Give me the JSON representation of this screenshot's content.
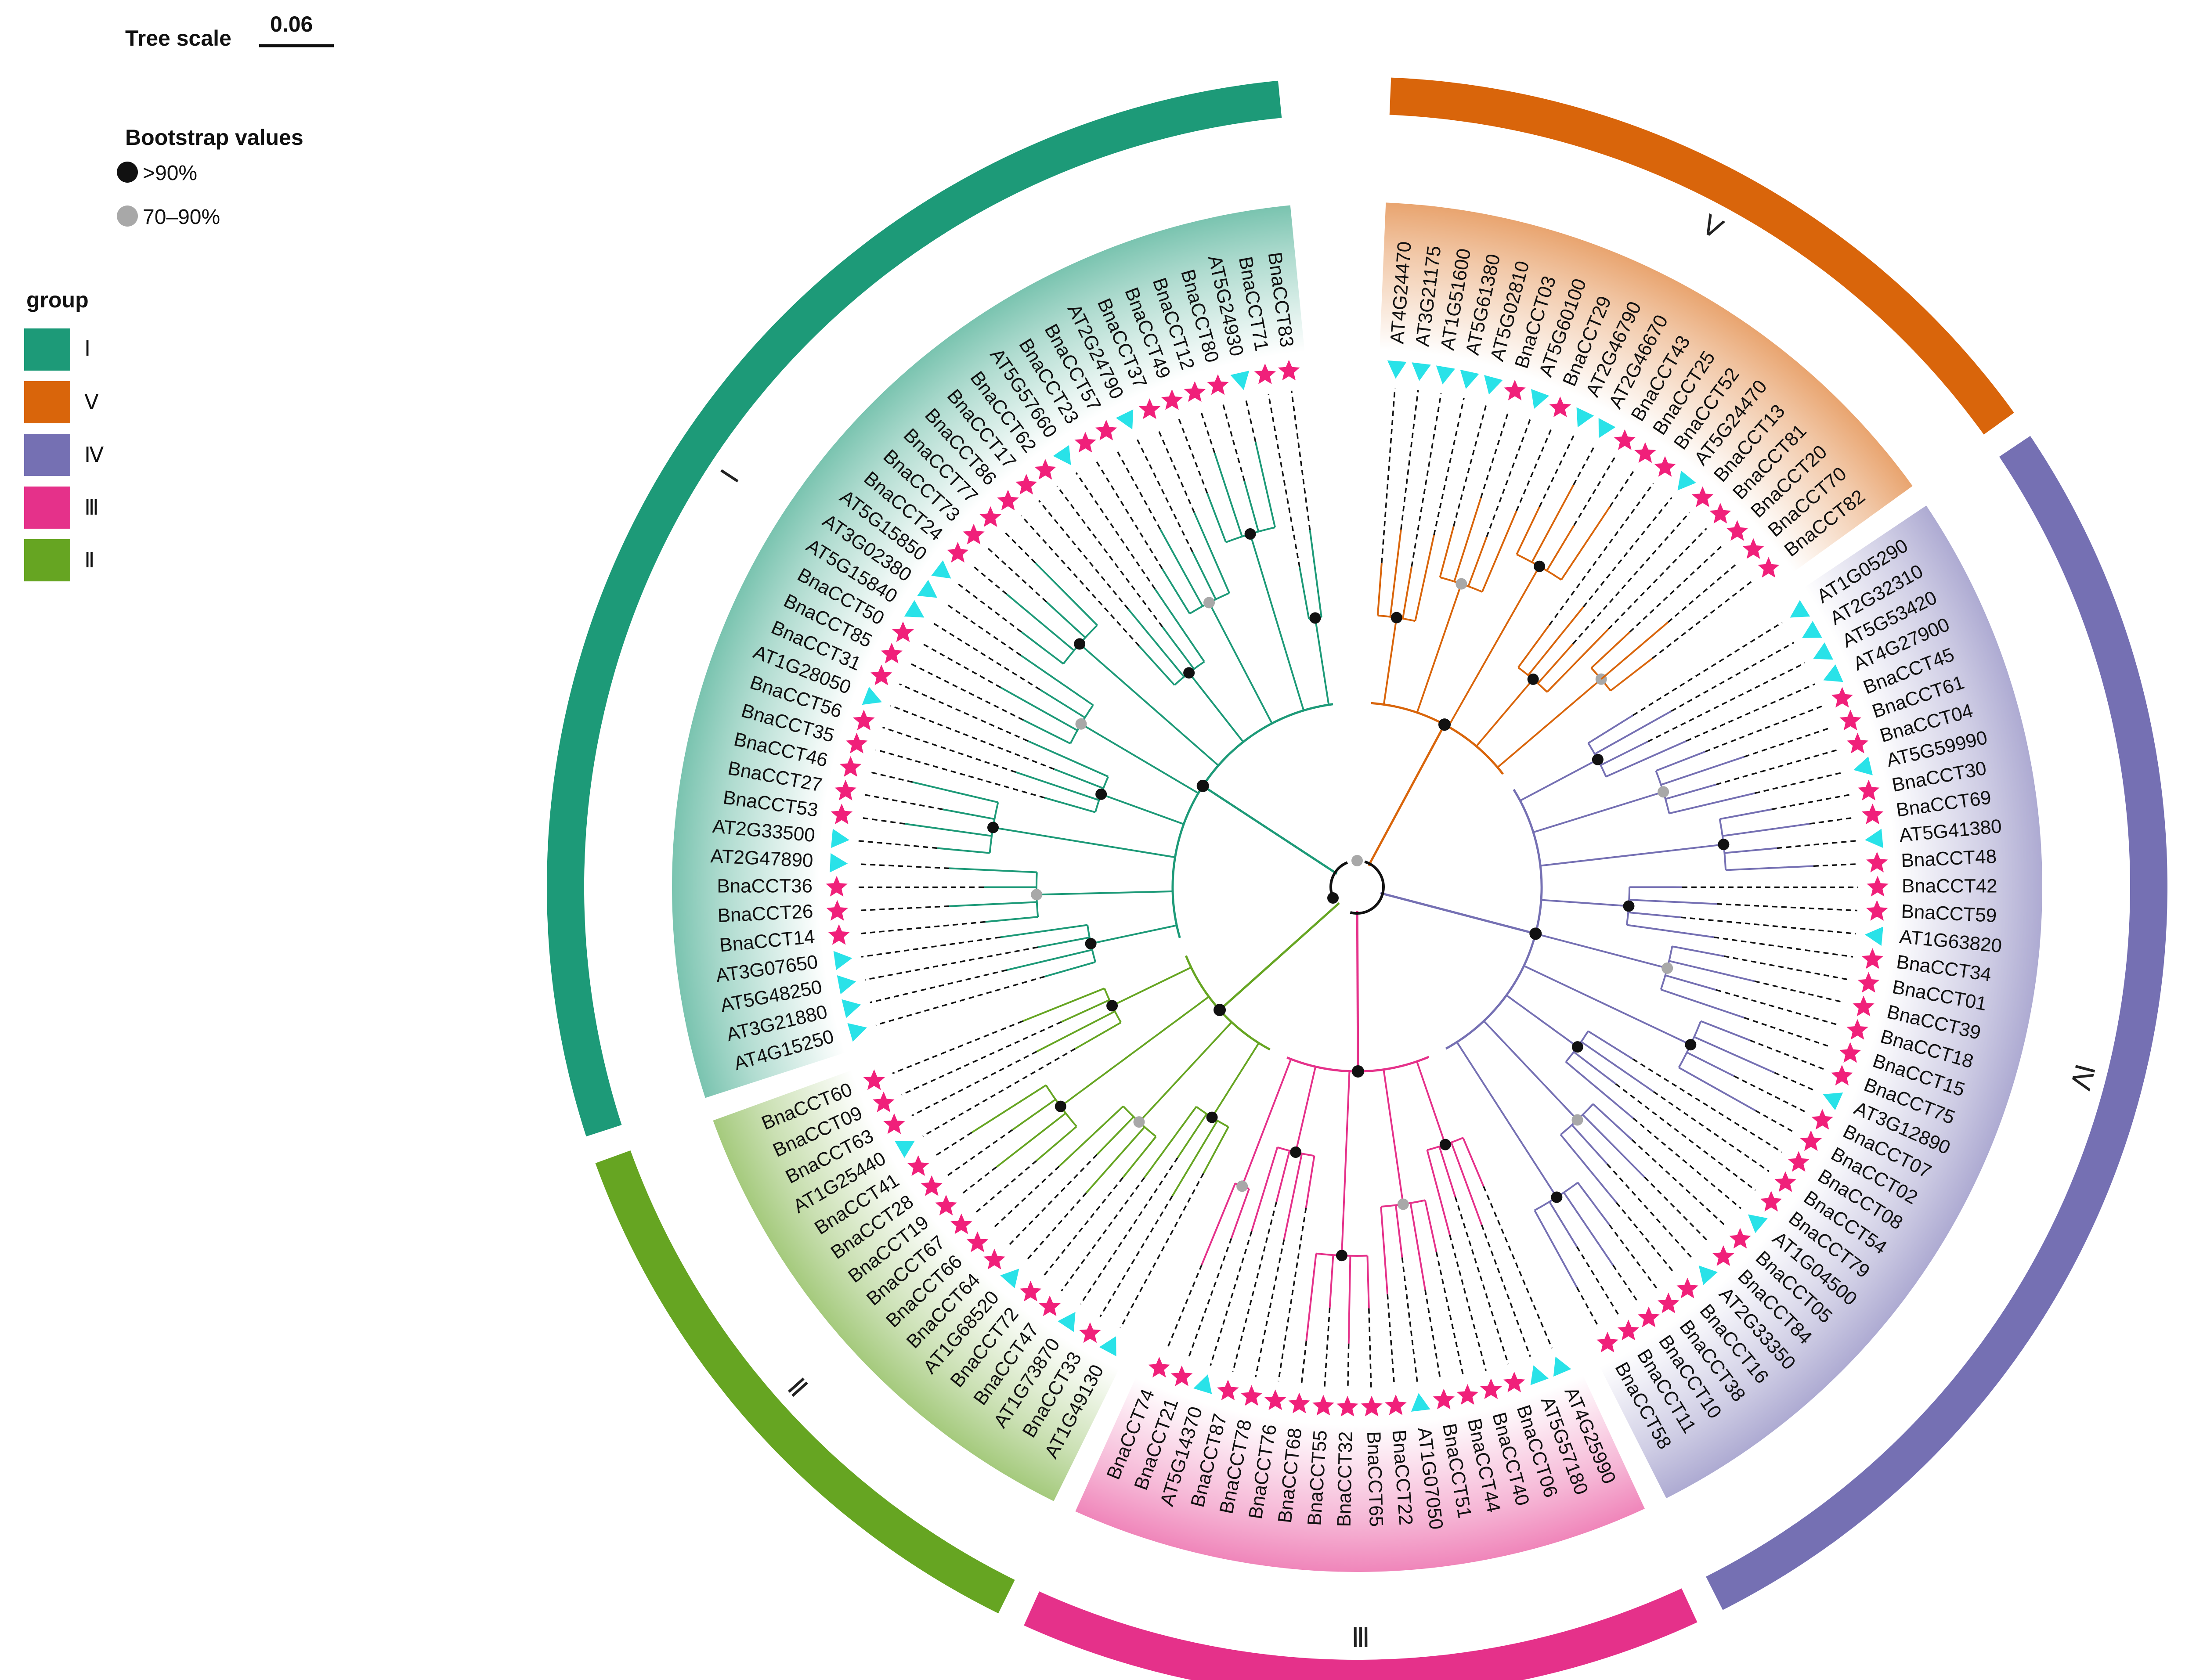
{
  "tree_scale": {
    "label": "Tree scale",
    "value": "0.06"
  },
  "bootstrap_legend": {
    "title": "Bootstrap values",
    "items": [
      {
        "label": ">90%",
        "color": "#111111"
      },
      {
        "label": "70–90%",
        "color": "#a8a8a8"
      }
    ]
  },
  "group_legend": {
    "title": "group",
    "items": [
      {
        "label": "Ⅰ",
        "color": "#1d9a78"
      },
      {
        "label": "Ⅴ",
        "color": "#d9650b"
      },
      {
        "label": "Ⅳ",
        "color": "#7570b3"
      },
      {
        "label": "Ⅲ",
        "color": "#e5318a"
      },
      {
        "label": "Ⅱ",
        "color": "#66a522"
      }
    ]
  },
  "marker_colors": {
    "star": "#f0207a",
    "triangle": "#29e2e8"
  },
  "groups": [
    {
      "id": "V",
      "numeral": "Ⅴ",
      "color": "#d9650b",
      "leaves": [
        {
          "name": "AT4G24470",
          "marker": "triangle"
        },
        {
          "name": "AT3G21175",
          "marker": "triangle"
        },
        {
          "name": "AT1G51600",
          "marker": "triangle"
        },
        {
          "name": "AT5G61380",
          "marker": "triangle"
        },
        {
          "name": "AT5G02810",
          "marker": "triangle"
        },
        {
          "name": "BnaCCT03",
          "marker": "star"
        },
        {
          "name": "AT5G60100",
          "marker": "triangle"
        },
        {
          "name": "BnaCCT29",
          "marker": "star"
        },
        {
          "name": "AT2G46790",
          "marker": "triangle"
        },
        {
          "name": "AT2G46670",
          "marker": "triangle"
        },
        {
          "name": "BnaCCT43",
          "marker": "star"
        },
        {
          "name": "BnaCCT25",
          "marker": "star"
        },
        {
          "name": "BnaCCT52",
          "marker": "star"
        },
        {
          "name": "AT5G24470",
          "marker": "triangle"
        },
        {
          "name": "BnaCCT13",
          "marker": "star"
        },
        {
          "name": "BnaCCT81",
          "marker": "star"
        },
        {
          "name": "BnaCCT20",
          "marker": "star"
        },
        {
          "name": "BnaCCT70",
          "marker": "star"
        },
        {
          "name": "BnaCCT82",
          "marker": "star"
        }
      ]
    },
    {
      "id": "IV",
      "numeral": "Ⅳ",
      "color": "#7570b3",
      "leaves": [
        {
          "name": "AT1G05290",
          "marker": "triangle"
        },
        {
          "name": "AT2G32310",
          "marker": "triangle"
        },
        {
          "name": "AT5G53420",
          "marker": "triangle"
        },
        {
          "name": "AT4G27900",
          "marker": "triangle"
        },
        {
          "name": "BnaCCT45",
          "marker": "star"
        },
        {
          "name": "BnaCCT61",
          "marker": "star"
        },
        {
          "name": "BnaCCT04",
          "marker": "star"
        },
        {
          "name": "AT5G59990",
          "marker": "triangle"
        },
        {
          "name": "BnaCCT30",
          "marker": "star"
        },
        {
          "name": "BnaCCT69",
          "marker": "star"
        },
        {
          "name": "AT5G41380",
          "marker": "triangle"
        },
        {
          "name": "BnaCCT48",
          "marker": "star"
        },
        {
          "name": "BnaCCT42",
          "marker": "star"
        },
        {
          "name": "BnaCCT59",
          "marker": "star"
        },
        {
          "name": "AT1G63820",
          "marker": "triangle"
        },
        {
          "name": "BnaCCT34",
          "marker": "star"
        },
        {
          "name": "BnaCCT01",
          "marker": "star"
        },
        {
          "name": "BnaCCT39",
          "marker": "star"
        },
        {
          "name": "BnaCCT18",
          "marker": "star"
        },
        {
          "name": "BnaCCT15",
          "marker": "star"
        },
        {
          "name": "BnaCCT75",
          "marker": "star"
        },
        {
          "name": "AT3G12890",
          "marker": "triangle"
        },
        {
          "name": "BnaCCT07",
          "marker": "star"
        },
        {
          "name": "BnaCCT02",
          "marker": "star"
        },
        {
          "name": "BnaCCT08",
          "marker": "star"
        },
        {
          "name": "BnaCCT54",
          "marker": "star"
        },
        {
          "name": "BnaCCT79",
          "marker": "star"
        },
        {
          "name": "AT1G04500",
          "marker": "triangle"
        },
        {
          "name": "BnaCCT05",
          "marker": "star"
        },
        {
          "name": "BnaCCT84",
          "marker": "star"
        },
        {
          "name": "AT2G33350",
          "marker": "triangle"
        },
        {
          "name": "BnaCCT16",
          "marker": "star"
        },
        {
          "name": "BnaCCT38",
          "marker": "star"
        },
        {
          "name": "BnaCCT10",
          "marker": "star"
        },
        {
          "name": "BnaCCT11",
          "marker": "star"
        },
        {
          "name": "BnaCCT58",
          "marker": "star"
        }
      ]
    },
    {
      "id": "III",
      "numeral": "Ⅲ",
      "color": "#e5318a",
      "leaves": [
        {
          "name": "AT4G25990",
          "marker": "triangle"
        },
        {
          "name": "AT5G57180",
          "marker": "triangle"
        },
        {
          "name": "BnaCCT06",
          "marker": "star"
        },
        {
          "name": "BnaCCT40",
          "marker": "star"
        },
        {
          "name": "BnaCCT44",
          "marker": "star"
        },
        {
          "name": "BnaCCT51",
          "marker": "star"
        },
        {
          "name": "AT1G07050",
          "marker": "triangle"
        },
        {
          "name": "BnaCCT22",
          "marker": "star"
        },
        {
          "name": "BnaCCT65",
          "marker": "star"
        },
        {
          "name": "BnaCCT32",
          "marker": "star"
        },
        {
          "name": "BnaCCT55",
          "marker": "star"
        },
        {
          "name": "BnaCCT68",
          "marker": "star"
        },
        {
          "name": "BnaCCT76",
          "marker": "star"
        },
        {
          "name": "BnaCCT78",
          "marker": "star"
        },
        {
          "name": "BnaCCT87",
          "marker": "star"
        },
        {
          "name": "AT5G14370",
          "marker": "triangle"
        },
        {
          "name": "BnaCCT21",
          "marker": "star"
        },
        {
          "name": "BnaCCT74",
          "marker": "star"
        }
      ]
    },
    {
      "id": "II",
      "numeral": "Ⅱ",
      "color": "#66a522",
      "leaves": [
        {
          "name": "AT1G49130",
          "marker": "triangle"
        },
        {
          "name": "BnaCCT33",
          "marker": "star"
        },
        {
          "name": "AT1G73870",
          "marker": "triangle"
        },
        {
          "name": "BnaCCT47",
          "marker": "star"
        },
        {
          "name": "BnaCCT72",
          "marker": "star"
        },
        {
          "name": "AT1G68520",
          "marker": "triangle"
        },
        {
          "name": "BnaCCT64",
          "marker": "star"
        },
        {
          "name": "BnaCCT66",
          "marker": "star"
        },
        {
          "name": "BnaCCT67",
          "marker": "star"
        },
        {
          "name": "BnaCCT19",
          "marker": "star"
        },
        {
          "name": "BnaCCT28",
          "marker": "star"
        },
        {
          "name": "BnaCCT41",
          "marker": "star"
        },
        {
          "name": "AT1G25440",
          "marker": "triangle"
        },
        {
          "name": "BnaCCT63",
          "marker": "star"
        },
        {
          "name": "BnaCCT09",
          "marker": "star"
        },
        {
          "name": "BnaCCT60",
          "marker": "star"
        }
      ]
    },
    {
      "id": "I",
      "numeral": "Ⅰ",
      "color": "#1d9a78",
      "leaves": [
        {
          "name": "AT4G15250",
          "marker": "triangle"
        },
        {
          "name": "AT3G21880",
          "marker": "triangle"
        },
        {
          "name": "AT5G48250",
          "marker": "triangle"
        },
        {
          "name": "AT3G07650",
          "marker": "triangle"
        },
        {
          "name": "BnaCCT14",
          "marker": "star"
        },
        {
          "name": "BnaCCT26",
          "marker": "star"
        },
        {
          "name": "BnaCCT36",
          "marker": "star"
        },
        {
          "name": "AT2G47890",
          "marker": "triangle"
        },
        {
          "name": "AT2G33500",
          "marker": "triangle"
        },
        {
          "name": "BnaCCT53",
          "marker": "star"
        },
        {
          "name": "BnaCCT27",
          "marker": "star"
        },
        {
          "name": "BnaCCT46",
          "marker": "star"
        },
        {
          "name": "BnaCCT35",
          "marker": "star"
        },
        {
          "name": "BnaCCT56",
          "marker": "star"
        },
        {
          "name": "AT1G28050",
          "marker": "triangle"
        },
        {
          "name": "BnaCCT31",
          "marker": "star"
        },
        {
          "name": "BnaCCT85",
          "marker": "star"
        },
        {
          "name": "BnaCCT50",
          "marker": "star"
        },
        {
          "name": "AT5G15840",
          "marker": "triangle"
        },
        {
          "name": "AT3G02380",
          "marker": "triangle"
        },
        {
          "name": "AT5G15850",
          "marker": "triangle"
        },
        {
          "name": "BnaCCT24",
          "marker": "star"
        },
        {
          "name": "BnaCCT73",
          "marker": "star"
        },
        {
          "name": "BnaCCT77",
          "marker": "star"
        },
        {
          "name": "BnaCCT86",
          "marker": "star"
        },
        {
          "name": "BnaCCT17",
          "marker": "star"
        },
        {
          "name": "BnaCCT62",
          "marker": "star"
        },
        {
          "name": "AT5G57660",
          "marker": "triangle"
        },
        {
          "name": "BnaCCT23",
          "marker": "star"
        },
        {
          "name": "BnaCCT57",
          "marker": "star"
        },
        {
          "name": "AT2G24790",
          "marker": "triangle"
        },
        {
          "name": "BnaCCT37",
          "marker": "star"
        },
        {
          "name": "BnaCCT49",
          "marker": "star"
        },
        {
          "name": "BnaCCT12",
          "marker": "star"
        },
        {
          "name": "BnaCCT80",
          "marker": "star"
        },
        {
          "name": "AT5G24930",
          "marker": "triangle"
        },
        {
          "name": "BnaCCT71",
          "marker": "star"
        },
        {
          "name": "BnaCCT83",
          "marker": "star"
        }
      ]
    }
  ]
}
